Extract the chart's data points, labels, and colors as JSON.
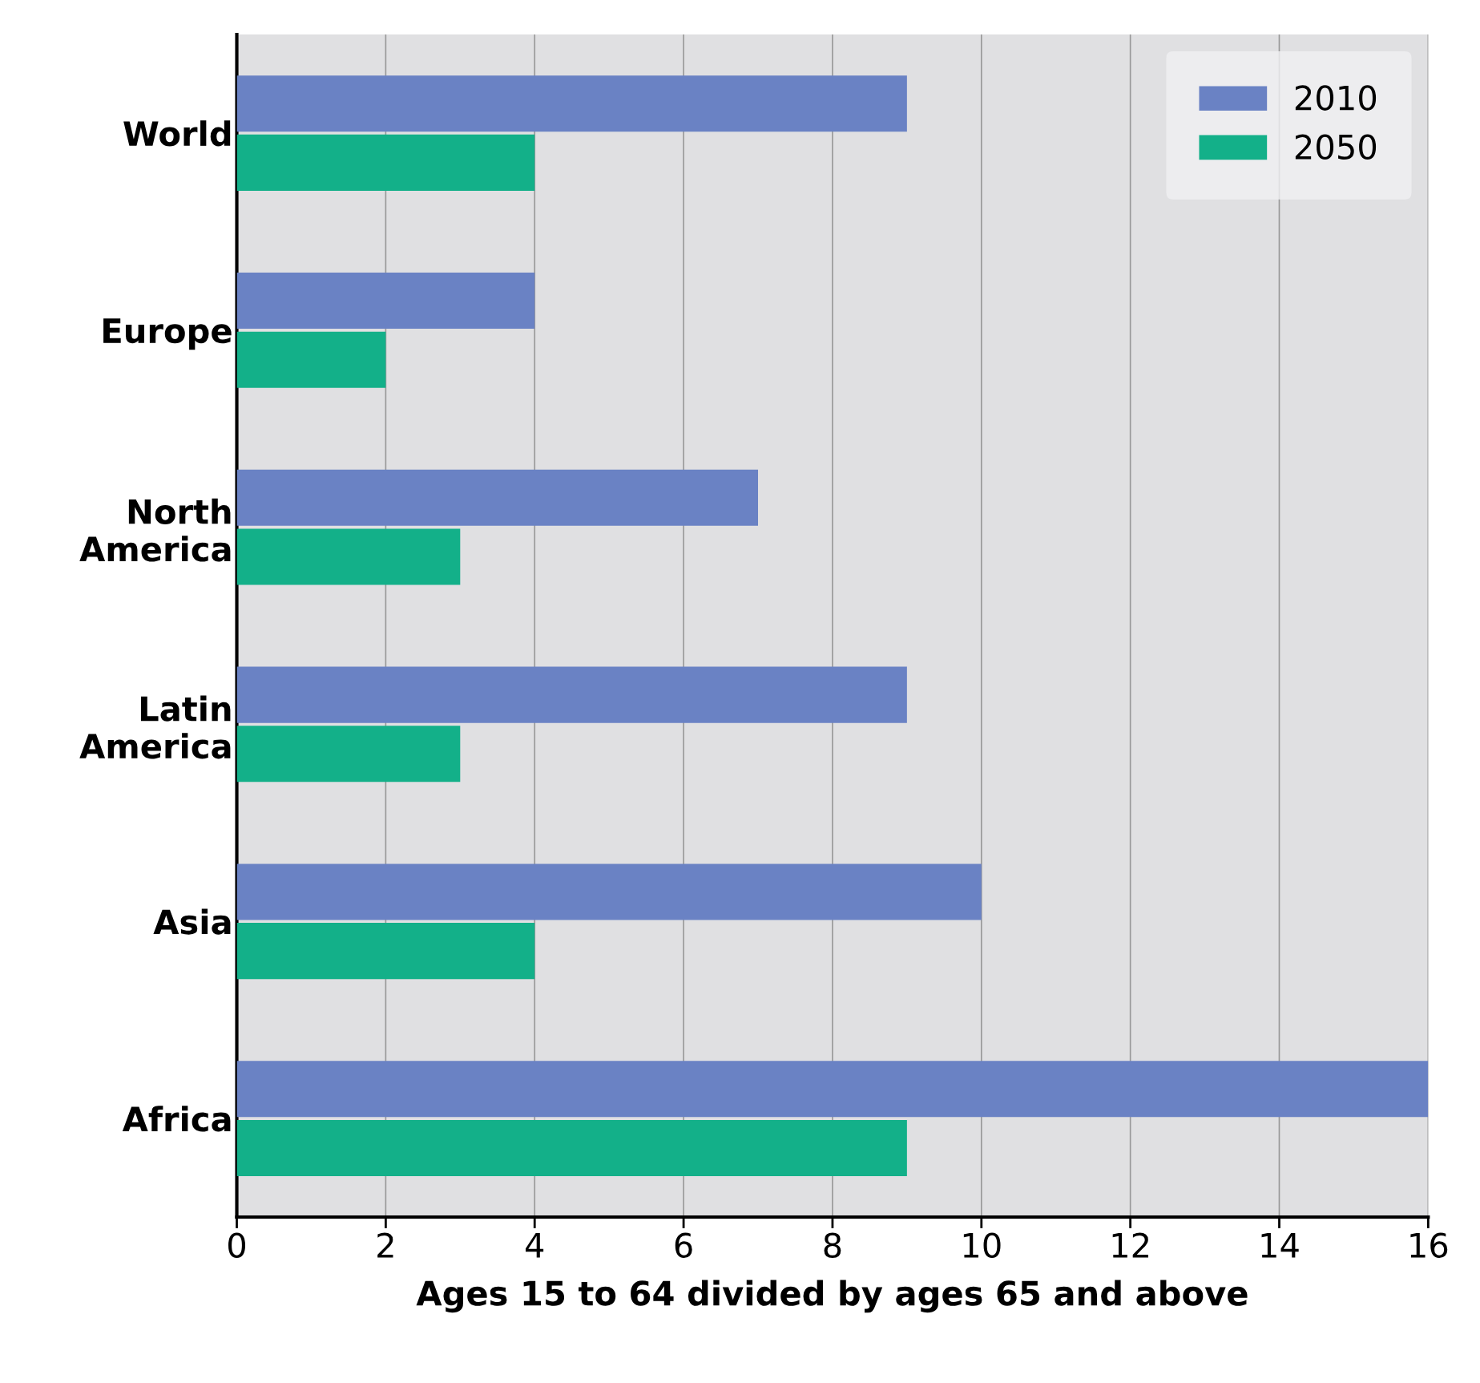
{
  "chart_data": {
    "type": "bar",
    "orientation": "horizontal",
    "xlabel": "Ages 15 to 64 divided by ages 65 and above",
    "categories": [
      "World",
      "Europe",
      "North\nAmerica",
      "Latin\nAmerica",
      "Asia",
      "Africa"
    ],
    "series": [
      {
        "name": "2010",
        "color": "#6a82c4",
        "values": [
          9,
          4,
          7,
          9,
          10,
          16
        ]
      },
      {
        "name": "2050",
        "color": "#13b089",
        "values": [
          4,
          2,
          3,
          3,
          4,
          9
        ]
      }
    ],
    "xlim": [
      0,
      16
    ],
    "xticks": [
      0,
      2,
      4,
      6,
      8,
      10,
      12,
      14,
      16
    ],
    "grid": "x",
    "legend": "top right"
  }
}
